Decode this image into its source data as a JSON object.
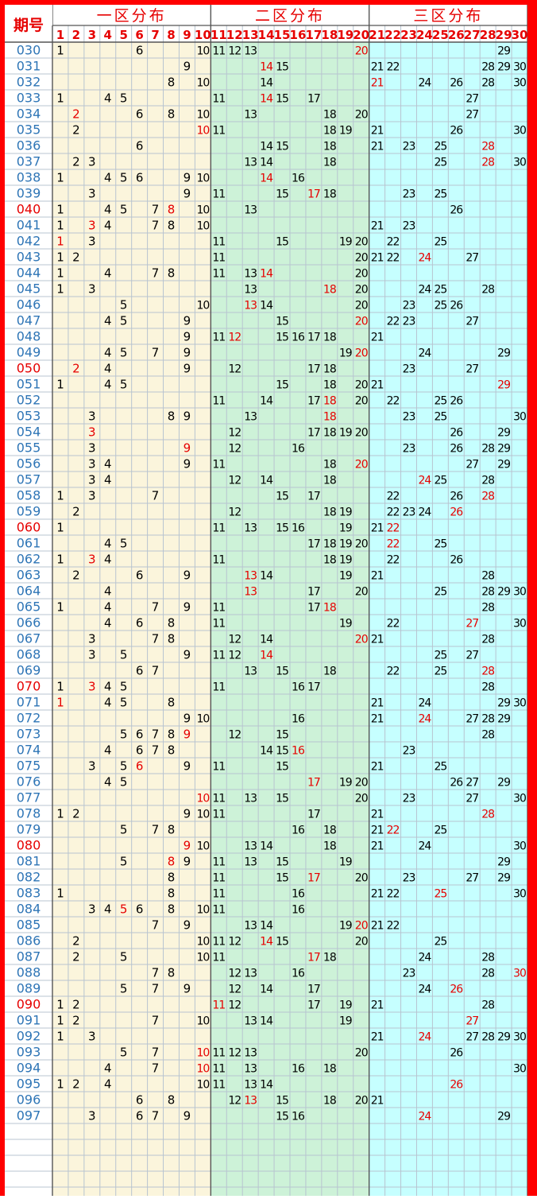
{
  "header": {
    "period_label": "期号",
    "zones": [
      {
        "title": "一区分布",
        "from": 1,
        "to": 10
      },
      {
        "title": "二区分布",
        "from": 11,
        "to": 20
      },
      {
        "title": "三区分布",
        "from": 21,
        "to": 30
      }
    ],
    "columns": [
      "1",
      "2",
      "3",
      "4",
      "5",
      "6",
      "7",
      "8",
      "9",
      "10",
      "11",
      "12",
      "13",
      "14",
      "15",
      "16",
      "17",
      "18",
      "19",
      "20",
      "21",
      "22",
      "23",
      "24",
      "25",
      "26",
      "27",
      "28",
      "29",
      "30"
    ]
  },
  "colors": {
    "border": "#ff0000",
    "zone1_bg": "#fbf5dc",
    "zone2_bg": "#cdf2d8",
    "zone3_bg": "#c6ffff",
    "period_normal": "#2e75b6",
    "period_highlight": "#e60000",
    "number_normal": "#000000",
    "number_highlight": "#e60000",
    "header_text": "#e60000"
  },
  "rows": [
    {
      "period": "030",
      "hl": false,
      "nums": [
        1,
        6,
        10,
        11,
        12,
        13,
        20,
        29
      ],
      "red": [
        20
      ]
    },
    {
      "period": "031",
      "hl": false,
      "nums": [
        9,
        14,
        15,
        21,
        22,
        28,
        29,
        30
      ],
      "red": [
        14
      ]
    },
    {
      "period": "032",
      "hl": false,
      "nums": [
        8,
        10,
        14,
        21,
        24,
        26,
        28,
        30
      ],
      "red": [
        21
      ]
    },
    {
      "period": "033",
      "hl": false,
      "nums": [
        1,
        4,
        5,
        11,
        14,
        15,
        17,
        27
      ],
      "red": [
        14
      ]
    },
    {
      "period": "034",
      "hl": false,
      "nums": [
        2,
        6,
        8,
        10,
        13,
        18,
        20,
        27
      ],
      "red": [
        2
      ]
    },
    {
      "period": "035",
      "hl": false,
      "nums": [
        2,
        10,
        11,
        18,
        19,
        21,
        26,
        30
      ],
      "red": [
        10
      ]
    },
    {
      "period": "036",
      "hl": false,
      "nums": [
        6,
        14,
        15,
        18,
        21,
        23,
        25,
        28
      ],
      "red": [
        28
      ]
    },
    {
      "period": "037",
      "hl": false,
      "nums": [
        2,
        3,
        13,
        14,
        18,
        25,
        28,
        30
      ],
      "red": [
        28
      ]
    },
    {
      "period": "038",
      "hl": false,
      "nums": [
        1,
        4,
        5,
        6,
        9,
        10,
        14,
        16
      ],
      "red": [
        14
      ]
    },
    {
      "period": "039",
      "hl": false,
      "nums": [
        3,
        9,
        11,
        15,
        17,
        18,
        23,
        25
      ],
      "red": [
        17
      ]
    },
    {
      "period": "040",
      "hl": true,
      "nums": [
        1,
        4,
        5,
        7,
        8,
        10,
        13,
        26
      ],
      "red": [
        8
      ]
    },
    {
      "period": "041",
      "hl": false,
      "nums": [
        1,
        3,
        4,
        7,
        8,
        10,
        21,
        23
      ],
      "red": [
        3
      ]
    },
    {
      "period": "042",
      "hl": false,
      "nums": [
        1,
        3,
        11,
        15,
        19,
        20,
        22,
        25
      ],
      "red": [
        1
      ]
    },
    {
      "period": "043",
      "hl": false,
      "nums": [
        1,
        2,
        11,
        20,
        21,
        22,
        24,
        27
      ],
      "red": [
        24
      ]
    },
    {
      "period": "044",
      "hl": false,
      "nums": [
        1,
        4,
        7,
        8,
        11,
        13,
        14,
        20
      ],
      "red": [
        14
      ]
    },
    {
      "period": "045",
      "hl": false,
      "nums": [
        1,
        3,
        13,
        18,
        20,
        24,
        25,
        28
      ],
      "red": [
        18
      ]
    },
    {
      "period": "046",
      "hl": false,
      "nums": [
        5,
        10,
        13,
        14,
        20,
        23,
        25,
        26
      ],
      "red": [
        13
      ]
    },
    {
      "period": "047",
      "hl": false,
      "nums": [
        4,
        5,
        9,
        15,
        20,
        22,
        23,
        27
      ],
      "red": [
        20
      ]
    },
    {
      "period": "048",
      "hl": false,
      "nums": [
        9,
        11,
        12,
        15,
        16,
        17,
        18,
        21
      ],
      "red": [
        12
      ]
    },
    {
      "period": "049",
      "hl": false,
      "nums": [
        4,
        5,
        7,
        9,
        19,
        20,
        24,
        29
      ],
      "red": [
        20
      ]
    },
    {
      "period": "050",
      "hl": true,
      "nums": [
        2,
        4,
        9,
        12,
        17,
        18,
        23,
        27
      ],
      "red": [
        2
      ]
    },
    {
      "period": "051",
      "hl": false,
      "nums": [
        1,
        4,
        5,
        15,
        18,
        20,
        21,
        29
      ],
      "red": [
        29
      ]
    },
    {
      "period": "052",
      "hl": false,
      "nums": [
        11,
        14,
        17,
        18,
        20,
        22,
        25,
        26
      ],
      "red": [
        18
      ]
    },
    {
      "period": "053",
      "hl": false,
      "nums": [
        3,
        8,
        9,
        13,
        18,
        23,
        25,
        30
      ],
      "red": [
        18
      ]
    },
    {
      "period": "054",
      "hl": false,
      "nums": [
        3,
        12,
        17,
        18,
        19,
        20,
        26,
        29
      ],
      "red": [
        3
      ]
    },
    {
      "period": "055",
      "hl": false,
      "nums": [
        3,
        9,
        12,
        16,
        23,
        26,
        28,
        29
      ],
      "red": [
        9
      ]
    },
    {
      "period": "056",
      "hl": false,
      "nums": [
        3,
        4,
        9,
        11,
        18,
        20,
        27,
        29
      ],
      "red": [
        20
      ]
    },
    {
      "period": "057",
      "hl": false,
      "nums": [
        3,
        4,
        12,
        14,
        18,
        24,
        25,
        28
      ],
      "red": [
        24
      ]
    },
    {
      "period": "058",
      "hl": false,
      "nums": [
        1,
        3,
        7,
        15,
        17,
        22,
        26,
        28
      ],
      "red": [
        28
      ]
    },
    {
      "period": "059",
      "hl": false,
      "nums": [
        2,
        12,
        18,
        19,
        22,
        23,
        24,
        26
      ],
      "red": [
        26
      ]
    },
    {
      "period": "060",
      "hl": true,
      "nums": [
        1,
        11,
        13,
        15,
        16,
        19,
        21,
        22
      ],
      "red": [
        22
      ]
    },
    {
      "period": "061",
      "hl": false,
      "nums": [
        4,
        5,
        17,
        18,
        19,
        20,
        22,
        25
      ],
      "red": [
        22
      ]
    },
    {
      "period": "062",
      "hl": false,
      "nums": [
        1,
        3,
        4,
        11,
        18,
        19,
        22,
        26
      ],
      "red": [
        3
      ]
    },
    {
      "period": "063",
      "hl": false,
      "nums": [
        2,
        6,
        9,
        13,
        14,
        19,
        21,
        28
      ],
      "red": [
        13
      ]
    },
    {
      "period": "064",
      "hl": false,
      "nums": [
        4,
        13,
        17,
        20,
        25,
        28,
        29,
        30
      ],
      "red": [
        13
      ]
    },
    {
      "period": "065",
      "hl": false,
      "nums": [
        1,
        4,
        7,
        9,
        11,
        17,
        18,
        28
      ],
      "red": [
        18
      ]
    },
    {
      "period": "066",
      "hl": false,
      "nums": [
        4,
        6,
        8,
        11,
        19,
        22,
        27,
        30
      ],
      "red": [
        27
      ]
    },
    {
      "period": "067",
      "hl": false,
      "nums": [
        3,
        7,
        8,
        12,
        14,
        20,
        21,
        28
      ],
      "red": [
        20
      ]
    },
    {
      "period": "068",
      "hl": false,
      "nums": [
        3,
        5,
        9,
        11,
        12,
        14,
        25,
        27
      ],
      "red": [
        14
      ]
    },
    {
      "period": "069",
      "hl": false,
      "nums": [
        6,
        7,
        13,
        15,
        18,
        22,
        25,
        28
      ],
      "red": [
        28
      ]
    },
    {
      "period": "070",
      "hl": true,
      "nums": [
        1,
        3,
        4,
        5,
        11,
        16,
        17,
        28
      ],
      "red": [
        3
      ]
    },
    {
      "period": "071",
      "hl": false,
      "nums": [
        1,
        4,
        5,
        8,
        21,
        24,
        29,
        30
      ],
      "red": [
        1
      ]
    },
    {
      "period": "072",
      "hl": false,
      "nums": [
        9,
        10,
        16,
        21,
        24,
        27,
        28,
        29
      ],
      "red": [
        24
      ]
    },
    {
      "period": "073",
      "hl": false,
      "nums": [
        5,
        6,
        7,
        8,
        9,
        12,
        15,
        28
      ],
      "red": [
        9
      ]
    },
    {
      "period": "074",
      "hl": false,
      "nums": [
        4,
        6,
        7,
        8,
        14,
        15,
        16,
        23
      ],
      "red": [
        16
      ]
    },
    {
      "period": "075",
      "hl": false,
      "nums": [
        3,
        5,
        6,
        9,
        11,
        15,
        21,
        25
      ],
      "red": [
        6
      ]
    },
    {
      "period": "076",
      "hl": false,
      "nums": [
        4,
        5,
        17,
        19,
        20,
        26,
        27,
        29
      ],
      "red": [
        17
      ]
    },
    {
      "period": "077",
      "hl": false,
      "nums": [
        10,
        11,
        13,
        15,
        20,
        23,
        27,
        30
      ],
      "red": [
        10
      ]
    },
    {
      "period": "078",
      "hl": false,
      "nums": [
        1,
        2,
        9,
        10,
        11,
        17,
        21,
        28
      ],
      "red": [
        28
      ]
    },
    {
      "period": "079",
      "hl": false,
      "nums": [
        5,
        7,
        8,
        16,
        18,
        21,
        22,
        25
      ],
      "red": [
        22
      ]
    },
    {
      "period": "080",
      "hl": true,
      "nums": [
        9,
        10,
        13,
        14,
        18,
        21,
        24,
        30
      ],
      "red": [
        9
      ]
    },
    {
      "period": "081",
      "hl": false,
      "nums": [
        5,
        8,
        9,
        11,
        13,
        15,
        19,
        29
      ],
      "red": [
        8
      ]
    },
    {
      "period": "082",
      "hl": false,
      "nums": [
        8,
        11,
        15,
        17,
        20,
        23,
        27,
        29
      ],
      "red": [
        17
      ]
    },
    {
      "period": "083",
      "hl": false,
      "nums": [
        1,
        8,
        11,
        16,
        21,
        22,
        25,
        30
      ],
      "red": [
        25
      ]
    },
    {
      "period": "084",
      "hl": false,
      "nums": [
        3,
        4,
        5,
        6,
        8,
        10,
        11,
        16
      ],
      "red": [
        5
      ]
    },
    {
      "period": "085",
      "hl": false,
      "nums": [
        7,
        9,
        13,
        14,
        19,
        20,
        21,
        22
      ],
      "red": [
        20
      ]
    },
    {
      "period": "086",
      "hl": false,
      "nums": [
        2,
        10,
        11,
        12,
        14,
        15,
        20,
        25
      ],
      "red": [
        14
      ]
    },
    {
      "period": "087",
      "hl": false,
      "nums": [
        2,
        5,
        10,
        11,
        17,
        18,
        24,
        28
      ],
      "red": [
        17
      ]
    },
    {
      "period": "088",
      "hl": false,
      "nums": [
        7,
        8,
        12,
        13,
        16,
        23,
        28,
        30
      ],
      "red": [
        30
      ]
    },
    {
      "period": "089",
      "hl": false,
      "nums": [
        5,
        7,
        9,
        12,
        14,
        17,
        24,
        26
      ],
      "red": [
        26
      ]
    },
    {
      "period": "090",
      "hl": true,
      "nums": [
        1,
        2,
        11,
        12,
        17,
        19,
        21,
        28
      ],
      "red": [
        11
      ]
    },
    {
      "period": "091",
      "hl": false,
      "nums": [
        1,
        2,
        7,
        10,
        13,
        14,
        19,
        27
      ],
      "red": [
        27
      ]
    },
    {
      "period": "092",
      "hl": false,
      "nums": [
        1,
        3,
        21,
        24,
        27,
        28,
        29,
        30
      ],
      "red": [
        24
      ]
    },
    {
      "period": "093",
      "hl": false,
      "nums": [
        5,
        7,
        10,
        11,
        12,
        13,
        20,
        26
      ],
      "red": [
        10
      ]
    },
    {
      "period": "094",
      "hl": false,
      "nums": [
        4,
        7,
        10,
        11,
        13,
        16,
        18,
        30
      ],
      "red": [
        10
      ]
    },
    {
      "period": "095",
      "hl": false,
      "nums": [
        1,
        2,
        4,
        10,
        11,
        13,
        14,
        26
      ],
      "red": [
        26
      ]
    },
    {
      "period": "096",
      "hl": false,
      "nums": [
        6,
        8,
        12,
        13,
        15,
        18,
        20,
        21
      ],
      "red": [
        13
      ]
    },
    {
      "period": "097",
      "hl": false,
      "nums": [
        3,
        6,
        7,
        9,
        15,
        16,
        24,
        29
      ],
      "red": [
        24
      ]
    }
  ]
}
